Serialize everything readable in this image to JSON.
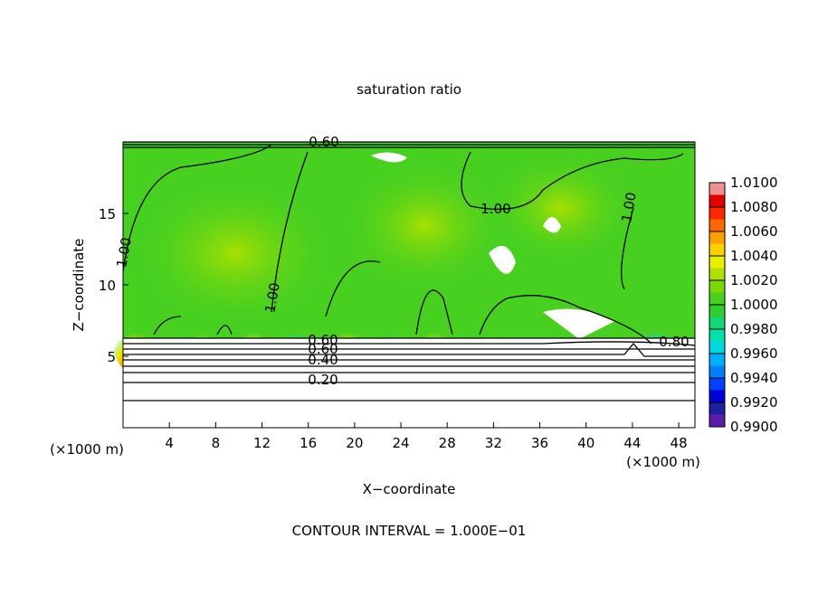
{
  "chart_data": {
    "type": "contour",
    "title": "saturation ratio",
    "xlabel": "X−coordinate",
    "ylabel": "Z−coordinate",
    "x_unit": "(×1000 m)",
    "xlim": [
      0,
      49.4
    ],
    "xticks": [
      4,
      8,
      12,
      16,
      20,
      24,
      28,
      32,
      36,
      40,
      44,
      48
    ],
    "ylim": [
      0,
      20
    ],
    "yticks": [
      5,
      10,
      15
    ],
    "contour_labels": [
      "0.60",
      "1.00",
      "1.00",
      "1.00",
      "1.00",
      "0.80",
      "0.60",
      "0.60",
      "0.40",
      "0.20"
    ],
    "footer": "CONTOUR INTERVAL = 1.000E−01",
    "colorbar": {
      "levels": [
        0.99,
        0.991,
        0.992,
        0.993,
        0.994,
        0.995,
        0.996,
        0.997,
        0.998,
        0.999,
        1.0,
        1.001,
        1.002,
        1.003,
        1.004,
        1.005,
        1.006,
        1.007,
        1.008,
        1.009,
        1.01
      ],
      "colors": [
        "#5c1ca8",
        "#1e1ea0",
        "#0000d8",
        "#0040ff",
        "#0080ff",
        "#00b0ff",
        "#00d8e0",
        "#00e0a8",
        "#10d870",
        "#30cc30",
        "#48d020",
        "#78d800",
        "#b0e000",
        "#e8f000",
        "#ffd000",
        "#ffa000",
        "#ff6800",
        "#ff2800",
        "#e00000",
        "#f09090"
      ],
      "ticks": [
        {
          "value": 1.01,
          "label": "1.0100"
        },
        {
          "value": 1.008,
          "label": "1.0080"
        },
        {
          "value": 1.006,
          "label": "1.0060"
        },
        {
          "value": 1.004,
          "label": "1.0040"
        },
        {
          "value": 1.002,
          "label": "1.0020"
        },
        {
          "value": 1.0,
          "label": "1.0000"
        },
        {
          "value": 0.998,
          "label": "0.9980"
        },
        {
          "value": 0.996,
          "label": "0.9960"
        },
        {
          "value": 0.994,
          "label": "0.9940"
        },
        {
          "value": 0.992,
          "label": "0.9920"
        },
        {
          "value": 0.99,
          "label": "0.9900"
        }
      ]
    }
  }
}
